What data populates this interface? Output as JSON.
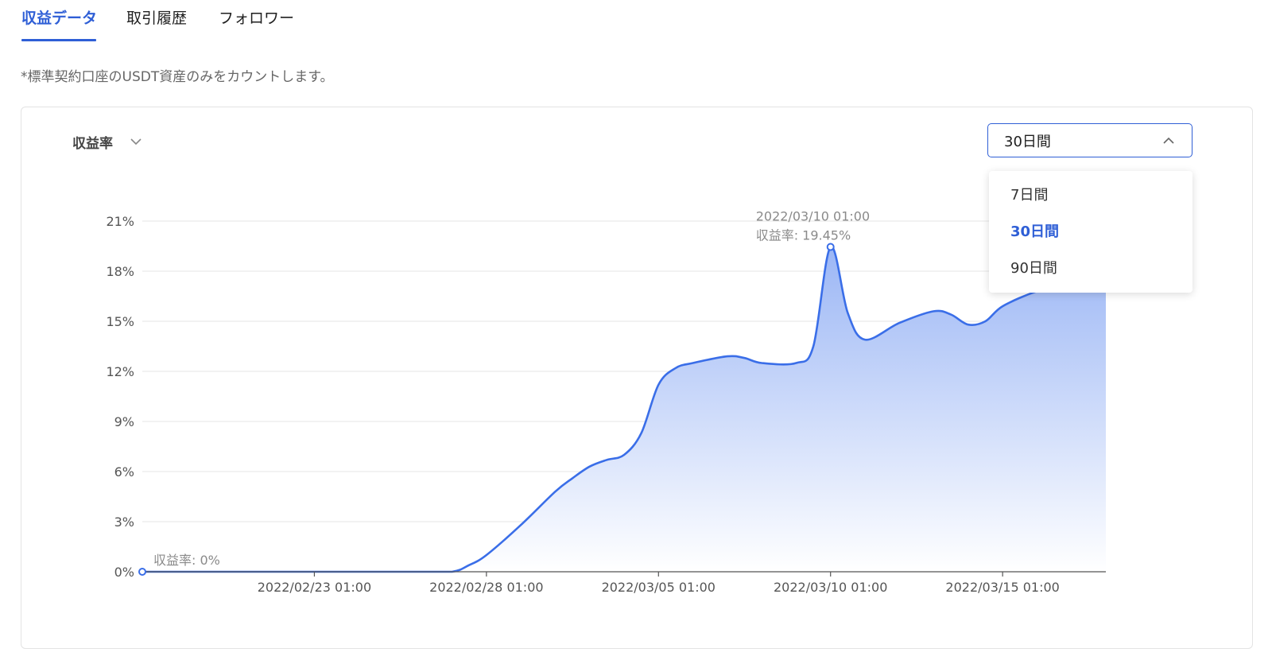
{
  "tabs": [
    {
      "label": "収益データ",
      "active": true
    },
    {
      "label": "取引履歴",
      "active": false
    },
    {
      "label": "フォロワー",
      "active": false
    }
  ],
  "note": "*標準契約口座のUSDT資産のみをカウントします。",
  "metric_select": {
    "label": "収益率",
    "icon": "chevron-down-icon"
  },
  "period_select": {
    "value": "30日間",
    "icon": "chevron-up-icon",
    "options": [
      "7日間",
      "30日間",
      "90日間"
    ],
    "selected_index": 1
  },
  "colors": {
    "accent": "#2f5fd6",
    "line": "#3a6ee8",
    "area_top": "#9bb6f5",
    "area_bottom": "#ffffff"
  },
  "chart_data": {
    "type": "area",
    "xlabel": "",
    "ylabel": "",
    "y_ticks": [
      "0%",
      "3%",
      "6%",
      "9%",
      "12%",
      "15%",
      "18%",
      "21%"
    ],
    "ylim": [
      0,
      21
    ],
    "x_ticks": [
      "2022/02/23 01:00",
      "2022/02/28 01:00",
      "2022/03/05 01:00",
      "2022/03/10 01:00",
      "2022/03/15 01:00"
    ],
    "x_tick_days": [
      5,
      10,
      15,
      20,
      25
    ],
    "xlim_days": [
      0,
      28
    ],
    "grid": true,
    "series": [
      {
        "points": [
          [
            0,
            0
          ],
          [
            1,
            0
          ],
          [
            2,
            0
          ],
          [
            3,
            0
          ],
          [
            4,
            0
          ],
          [
            5,
            0
          ],
          [
            6,
            0
          ],
          [
            7,
            0
          ],
          [
            8,
            0
          ],
          [
            9,
            0
          ],
          [
            9.5,
            0.4
          ],
          [
            10,
            1.0
          ],
          [
            11,
            2.8
          ],
          [
            12,
            4.8
          ],
          [
            12.5,
            5.6
          ],
          [
            13,
            6.3
          ],
          [
            13.5,
            6.7
          ],
          [
            14,
            7.0
          ],
          [
            14.5,
            8.3
          ],
          [
            15,
            11.2
          ],
          [
            15.5,
            12.2
          ],
          [
            16,
            12.5
          ],
          [
            17,
            12.9
          ],
          [
            17.5,
            12.8
          ],
          [
            18,
            12.5
          ],
          [
            19,
            12.5
          ],
          [
            19.5,
            13.5
          ],
          [
            20,
            19.45
          ],
          [
            20.5,
            15.5
          ],
          [
            21,
            13.9
          ],
          [
            22,
            14.9
          ],
          [
            23,
            15.6
          ],
          [
            23.5,
            15.4
          ],
          [
            24,
            14.8
          ],
          [
            24.5,
            15.0
          ],
          [
            25,
            15.9
          ],
          [
            26,
            16.8
          ],
          [
            27,
            17.3
          ],
          [
            28,
            17.5
          ]
        ]
      }
    ],
    "annotations": [
      {
        "line1": "収益率: 0%",
        "x_day": 0,
        "y": 0
      },
      {
        "line1": "2022/03/10 01:00",
        "line2": "収益率: 19.45%",
        "x_day": 20,
        "y": 19.45
      }
    ]
  }
}
